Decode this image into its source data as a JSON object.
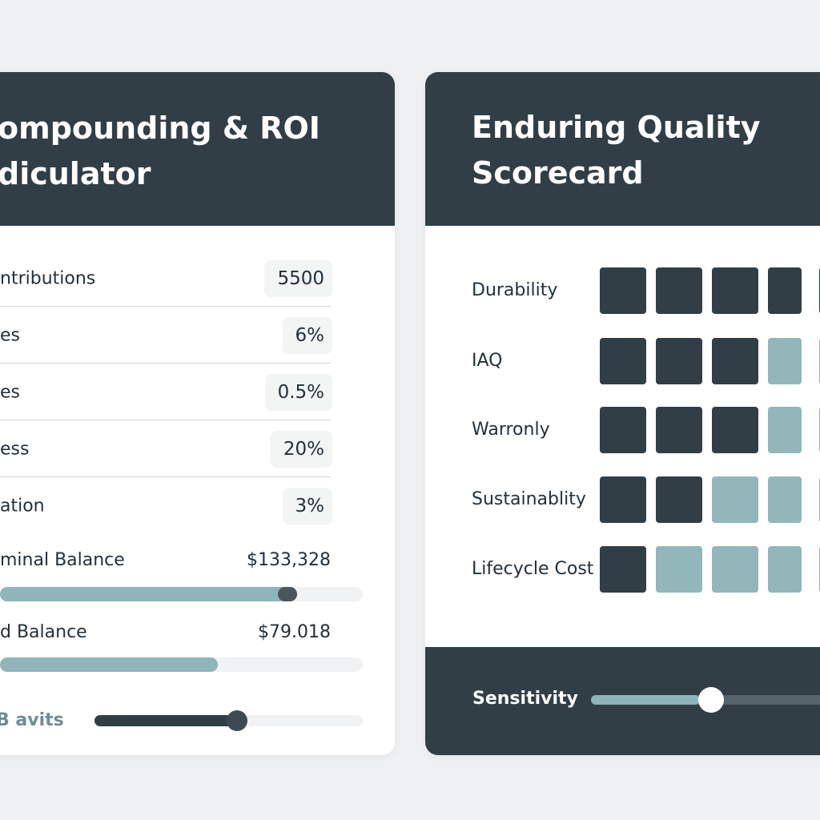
{
  "left_card": {
    "title_line1": "ompounding & ROI",
    "title_line2": "diculator",
    "fields": [
      {
        "label": "ntributions",
        "value": "5500"
      },
      {
        "label": "es",
        "value": "6%"
      },
      {
        "label": "es",
        "value": "0.5%"
      },
      {
        "label": "ess",
        "value": "20%"
      },
      {
        "label": "ation",
        "value": "3%"
      }
    ],
    "balances": [
      {
        "label": "minal Balance",
        "value": "$133,328",
        "progress": 0.82
      },
      {
        "label": "d Balance",
        "value": "$79.018",
        "progress": 0.6
      }
    ],
    "slider": {
      "label": "B avits",
      "value": 0.53
    }
  },
  "right_card": {
    "title_line1": "Enduring Quality",
    "title_line2": "Scorecard",
    "criteria": [
      {
        "label": "Durability",
        "score": 5
      },
      {
        "label": "IAQ",
        "score": 3
      },
      {
        "label": "Warronly",
        "score": 3
      },
      {
        "label": "Sustainablity",
        "score": 2
      },
      {
        "label": "Lifecycle Cost",
        "score": 1
      }
    ],
    "max_visible": 5,
    "sensitivity": {
      "label": "Sensitivity",
      "value": 0.5
    }
  },
  "colors": {
    "dark": "#313e46",
    "accent": "#8fb4b9",
    "background": "#eef0f1"
  }
}
